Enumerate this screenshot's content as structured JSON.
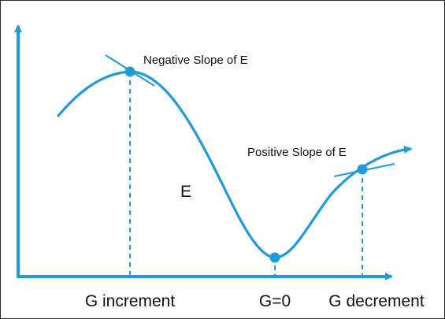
{
  "diagram": {
    "colors": {
      "accent": "#1f9bd7",
      "text": "#111111",
      "border": "#2a2a2a",
      "background": "#ffffff"
    },
    "annotations": {
      "negative_slope": "Negative Slope of E",
      "positive_slope": "Positive Slope of E",
      "curve_label": "E"
    },
    "axis_labels": {
      "increment": "G increment",
      "zero": "G=0",
      "decrement": "G decrement"
    }
  }
}
